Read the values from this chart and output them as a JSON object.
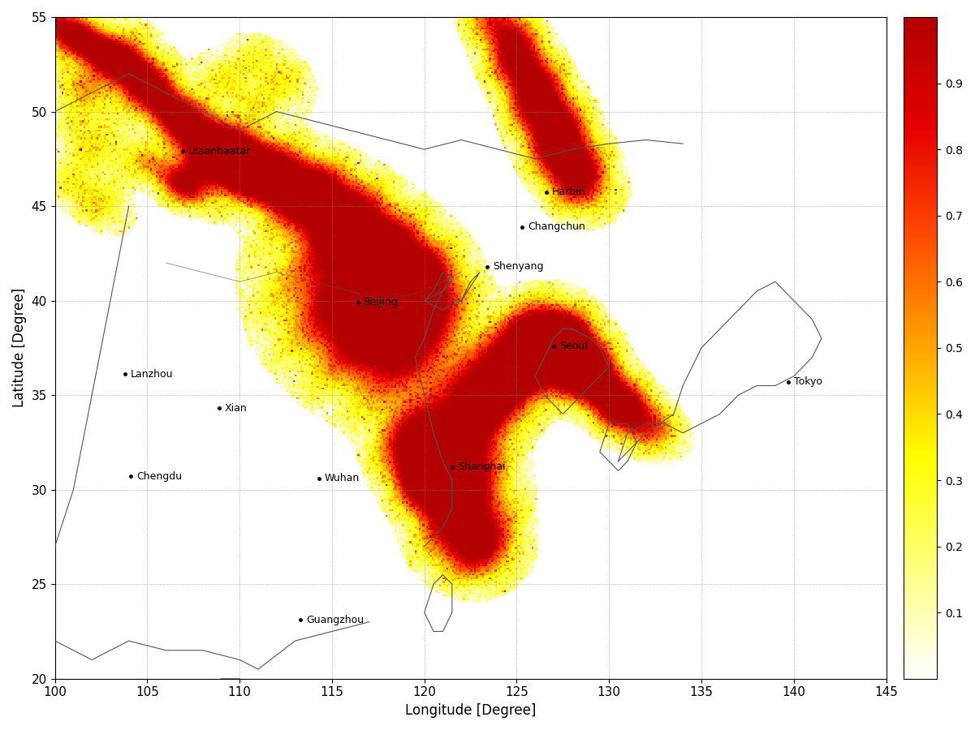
{
  "lon_min": 100,
  "lon_max": 145,
  "lat_min": 20,
  "lat_max": 55,
  "xticks": [
    100,
    105,
    110,
    115,
    120,
    125,
    130,
    135,
    140,
    145
  ],
  "yticks": [
    20,
    25,
    30,
    35,
    40,
    45,
    50,
    55
  ],
  "xlabel": "Longitude [Degree]",
  "ylabel": "Latitude [Degree]",
  "colorbar_ticks": [
    0.1,
    0.2,
    0.3,
    0.4,
    0.5,
    0.6,
    0.7,
    0.8,
    0.9
  ],
  "cities": [
    {
      "name": "Ulaanbaatar",
      "lon": 106.9,
      "lat": 47.9
    },
    {
      "name": "Harbin",
      "lon": 126.6,
      "lat": 45.75
    },
    {
      "name": "Changchun",
      "lon": 125.3,
      "lat": 43.9
    },
    {
      "name": "Shenyang",
      "lon": 123.4,
      "lat": 41.8
    },
    {
      "name": "Beijing",
      "lon": 116.4,
      "lat": 39.9
    },
    {
      "name": "Seoul",
      "lon": 127.0,
      "lat": 37.6
    },
    {
      "name": "Tokyo",
      "lon": 139.7,
      "lat": 35.7
    },
    {
      "name": "Lanzhou",
      "lon": 103.8,
      "lat": 36.1
    },
    {
      "name": "Xian",
      "lon": 108.9,
      "lat": 34.3
    },
    {
      "name": "Chengdu",
      "lon": 104.1,
      "lat": 30.7
    },
    {
      "name": "Wuhan",
      "lon": 114.3,
      "lat": 30.6
    },
    {
      "name": "Shanghai",
      "lon": 121.5,
      "lat": 31.2
    },
    {
      "name": "Guangzhou",
      "lon": 113.3,
      "lat": 23.1
    }
  ],
  "background_color": "#ffffff",
  "grid_color": "#888888",
  "grid_linestyle": ":",
  "map_linecolor": "#555555",
  "map_linewidth": 0.8,
  "colormap": "hot_r_custom",
  "vmin": 0.0,
  "vmax": 1.0,
  "figsize": [
    12.01,
    9.0
  ],
  "dpi": 100
}
